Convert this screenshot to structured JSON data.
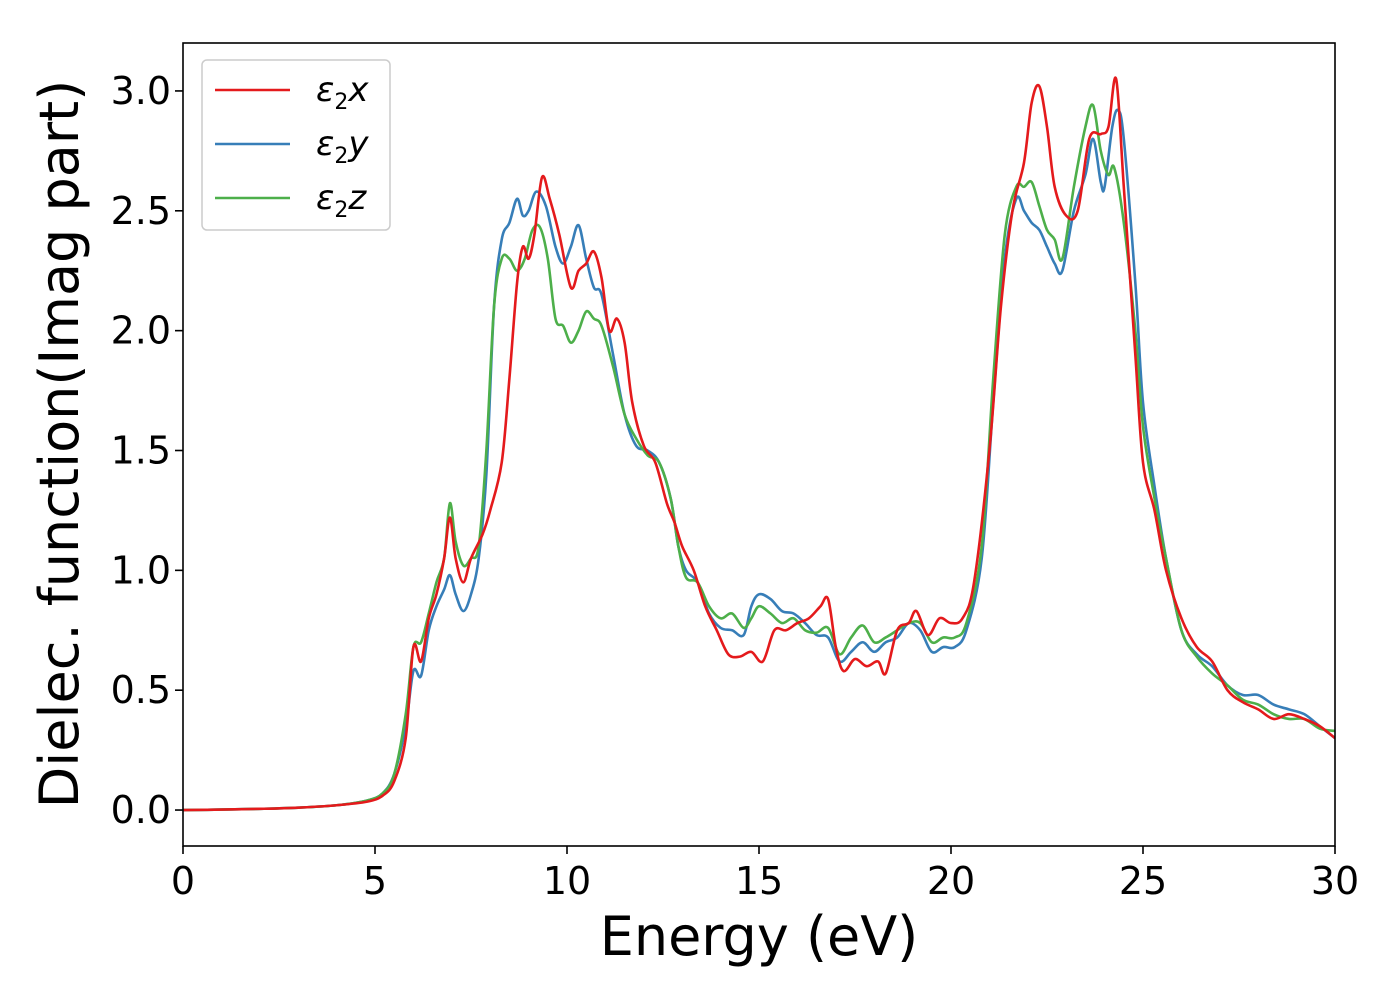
{
  "chart_data": {
    "type": "line",
    "title": "",
    "xlabel": "Energy (eV)",
    "ylabel": "Dielec. function(Imag part)",
    "xlim": [
      0,
      30
    ],
    "ylim": [
      -0.15,
      3.2
    ],
    "xticks": [
      0,
      5,
      10,
      15,
      20,
      25,
      30
    ],
    "yticks": [
      0.0,
      0.5,
      1.0,
      1.5,
      2.0,
      2.5,
      3.0
    ],
    "xtick_labels": [
      "0",
      "5",
      "10",
      "15",
      "20",
      "25",
      "30"
    ],
    "ytick_labels": [
      "0.0",
      "0.5",
      "1.0",
      "1.5",
      "2.0",
      "2.5",
      "3.0"
    ],
    "grid": false,
    "legend_position": "top-left",
    "series": [
      {
        "name": "ε₂x",
        "legend": {
          "main": "ε",
          "sub": "2",
          "suffix": "x"
        },
        "color": "#e41a1c",
        "points": [
          [
            0,
            0
          ],
          [
            1,
            0.002
          ],
          [
            2,
            0.005
          ],
          [
            3,
            0.01
          ],
          [
            4,
            0.02
          ],
          [
            4.8,
            0.035
          ],
          [
            5.2,
            0.06
          ],
          [
            5.5,
            0.12
          ],
          [
            5.8,
            0.3
          ],
          [
            6.0,
            0.68
          ],
          [
            6.2,
            0.62
          ],
          [
            6.4,
            0.8
          ],
          [
            6.6,
            0.9
          ],
          [
            6.8,
            1.05
          ],
          [
            6.95,
            1.22
          ],
          [
            7.1,
            1.05
          ],
          [
            7.3,
            0.95
          ],
          [
            7.5,
            1.05
          ],
          [
            7.8,
            1.15
          ],
          [
            8.0,
            1.25
          ],
          [
            8.3,
            1.45
          ],
          [
            8.5,
            1.8
          ],
          [
            8.7,
            2.2
          ],
          [
            8.85,
            2.35
          ],
          [
            9.0,
            2.3
          ],
          [
            9.15,
            2.4
          ],
          [
            9.35,
            2.64
          ],
          [
            9.55,
            2.55
          ],
          [
            9.8,
            2.4
          ],
          [
            10.1,
            2.18
          ],
          [
            10.3,
            2.25
          ],
          [
            10.5,
            2.28
          ],
          [
            10.7,
            2.33
          ],
          [
            10.9,
            2.22
          ],
          [
            11.1,
            2.0
          ],
          [
            11.3,
            2.05
          ],
          [
            11.5,
            1.95
          ],
          [
            11.7,
            1.7
          ],
          [
            12.0,
            1.52
          ],
          [
            12.3,
            1.45
          ],
          [
            12.6,
            1.28
          ],
          [
            12.8,
            1.2
          ],
          [
            13.0,
            1.1
          ],
          [
            13.3,
            1.0
          ],
          [
            13.6,
            0.85
          ],
          [
            13.9,
            0.75
          ],
          [
            14.2,
            0.65
          ],
          [
            14.5,
            0.64
          ],
          [
            14.8,
            0.66
          ],
          [
            15.1,
            0.62
          ],
          [
            15.4,
            0.75
          ],
          [
            15.7,
            0.75
          ],
          [
            16.0,
            0.78
          ],
          [
            16.3,
            0.8
          ],
          [
            16.6,
            0.85
          ],
          [
            16.8,
            0.88
          ],
          [
            17.0,
            0.68
          ],
          [
            17.2,
            0.58
          ],
          [
            17.5,
            0.63
          ],
          [
            17.8,
            0.6
          ],
          [
            18.1,
            0.62
          ],
          [
            18.3,
            0.57
          ],
          [
            18.6,
            0.75
          ],
          [
            18.9,
            0.78
          ],
          [
            19.1,
            0.83
          ],
          [
            19.4,
            0.73
          ],
          [
            19.7,
            0.8
          ],
          [
            20.0,
            0.78
          ],
          [
            20.3,
            0.8
          ],
          [
            20.6,
            0.95
          ],
          [
            21.0,
            1.5
          ],
          [
            21.3,
            2.1
          ],
          [
            21.6,
            2.5
          ],
          [
            21.9,
            2.7
          ],
          [
            22.1,
            2.95
          ],
          [
            22.3,
            3.02
          ],
          [
            22.5,
            2.85
          ],
          [
            22.7,
            2.6
          ],
          [
            23.0,
            2.48
          ],
          [
            23.3,
            2.5
          ],
          [
            23.6,
            2.8
          ],
          [
            23.9,
            2.82
          ],
          [
            24.1,
            2.85
          ],
          [
            24.3,
            3.05
          ],
          [
            24.5,
            2.6
          ],
          [
            24.8,
            1.9
          ],
          [
            25.0,
            1.45
          ],
          [
            25.3,
            1.25
          ],
          [
            25.6,
            1.0
          ],
          [
            26.0,
            0.8
          ],
          [
            26.4,
            0.68
          ],
          [
            26.8,
            0.62
          ],
          [
            27.2,
            0.5
          ],
          [
            27.6,
            0.45
          ],
          [
            28.0,
            0.42
          ],
          [
            28.4,
            0.38
          ],
          [
            28.8,
            0.4
          ],
          [
            29.2,
            0.38
          ],
          [
            29.6,
            0.35
          ],
          [
            30.0,
            0.3
          ]
        ]
      },
      {
        "name": "ε₂y",
        "legend": {
          "main": "ε",
          "sub": "2",
          "suffix": "y"
        },
        "color": "#377eb8",
        "points": [
          [
            0,
            0
          ],
          [
            1,
            0.002
          ],
          [
            2,
            0.005
          ],
          [
            3,
            0.01
          ],
          [
            4,
            0.02
          ],
          [
            4.8,
            0.04
          ],
          [
            5.2,
            0.07
          ],
          [
            5.5,
            0.15
          ],
          [
            5.8,
            0.35
          ],
          [
            6.0,
            0.58
          ],
          [
            6.2,
            0.56
          ],
          [
            6.4,
            0.75
          ],
          [
            6.6,
            0.85
          ],
          [
            6.8,
            0.92
          ],
          [
            6.95,
            0.98
          ],
          [
            7.1,
            0.9
          ],
          [
            7.3,
            0.83
          ],
          [
            7.5,
            0.9
          ],
          [
            7.7,
            1.05
          ],
          [
            7.9,
            1.4
          ],
          [
            8.1,
            2.1
          ],
          [
            8.3,
            2.38
          ],
          [
            8.5,
            2.45
          ],
          [
            8.7,
            2.55
          ],
          [
            8.85,
            2.48
          ],
          [
            9.0,
            2.5
          ],
          [
            9.2,
            2.58
          ],
          [
            9.45,
            2.52
          ],
          [
            9.7,
            2.35
          ],
          [
            9.9,
            2.28
          ],
          [
            10.1,
            2.35
          ],
          [
            10.3,
            2.44
          ],
          [
            10.5,
            2.3
          ],
          [
            10.7,
            2.18
          ],
          [
            10.9,
            2.15
          ],
          [
            11.2,
            1.9
          ],
          [
            11.5,
            1.65
          ],
          [
            11.8,
            1.52
          ],
          [
            12.1,
            1.5
          ],
          [
            12.4,
            1.45
          ],
          [
            12.7,
            1.3
          ],
          [
            12.9,
            1.1
          ],
          [
            13.1,
            1.0
          ],
          [
            13.4,
            0.95
          ],
          [
            13.7,
            0.82
          ],
          [
            14.0,
            0.76
          ],
          [
            14.3,
            0.75
          ],
          [
            14.6,
            0.73
          ],
          [
            14.8,
            0.85
          ],
          [
            15.0,
            0.9
          ],
          [
            15.3,
            0.88
          ],
          [
            15.6,
            0.83
          ],
          [
            15.9,
            0.82
          ],
          [
            16.2,
            0.78
          ],
          [
            16.5,
            0.73
          ],
          [
            16.8,
            0.72
          ],
          [
            17.1,
            0.62
          ],
          [
            17.4,
            0.66
          ],
          [
            17.7,
            0.7
          ],
          [
            18.0,
            0.66
          ],
          [
            18.3,
            0.7
          ],
          [
            18.6,
            0.72
          ],
          [
            18.9,
            0.78
          ],
          [
            19.2,
            0.75
          ],
          [
            19.5,
            0.66
          ],
          [
            19.8,
            0.68
          ],
          [
            20.1,
            0.68
          ],
          [
            20.4,
            0.75
          ],
          [
            20.8,
            1.05
          ],
          [
            21.1,
            1.7
          ],
          [
            21.4,
            2.3
          ],
          [
            21.7,
            2.55
          ],
          [
            21.9,
            2.5
          ],
          [
            22.1,
            2.45
          ],
          [
            22.3,
            2.42
          ],
          [
            22.5,
            2.35
          ],
          [
            22.7,
            2.28
          ],
          [
            22.9,
            2.25
          ],
          [
            23.2,
            2.5
          ],
          [
            23.5,
            2.65
          ],
          [
            23.7,
            2.8
          ],
          [
            23.9,
            2.62
          ],
          [
            24.0,
            2.6
          ],
          [
            24.2,
            2.85
          ],
          [
            24.35,
            2.92
          ],
          [
            24.5,
            2.8
          ],
          [
            24.8,
            2.2
          ],
          [
            25.0,
            1.7
          ],
          [
            25.3,
            1.35
          ],
          [
            25.6,
            1.05
          ],
          [
            26.0,
            0.75
          ],
          [
            26.4,
            0.65
          ],
          [
            26.8,
            0.6
          ],
          [
            27.2,
            0.52
          ],
          [
            27.6,
            0.48
          ],
          [
            28.0,
            0.48
          ],
          [
            28.4,
            0.44
          ],
          [
            28.8,
            0.42
          ],
          [
            29.2,
            0.4
          ],
          [
            29.6,
            0.35
          ],
          [
            30.0,
            0.3
          ]
        ]
      },
      {
        "name": "ε₂z",
        "legend": {
          "main": "ε",
          "sub": "2",
          "suffix": "z"
        },
        "color": "#4daf4a",
        "points": [
          [
            0,
            0
          ],
          [
            1,
            0.002
          ],
          [
            2,
            0.005
          ],
          [
            3,
            0.01
          ],
          [
            4,
            0.02
          ],
          [
            4.8,
            0.04
          ],
          [
            5.2,
            0.07
          ],
          [
            5.5,
            0.15
          ],
          [
            5.8,
            0.4
          ],
          [
            6.0,
            0.68
          ],
          [
            6.2,
            0.7
          ],
          [
            6.4,
            0.82
          ],
          [
            6.6,
            0.95
          ],
          [
            6.8,
            1.05
          ],
          [
            6.95,
            1.28
          ],
          [
            7.1,
            1.12
          ],
          [
            7.3,
            1.02
          ],
          [
            7.5,
            1.05
          ],
          [
            7.7,
            1.1
          ],
          [
            7.9,
            1.5
          ],
          [
            8.1,
            2.1
          ],
          [
            8.3,
            2.3
          ],
          [
            8.5,
            2.3
          ],
          [
            8.7,
            2.25
          ],
          [
            8.9,
            2.3
          ],
          [
            9.1,
            2.42
          ],
          [
            9.3,
            2.43
          ],
          [
            9.5,
            2.3
          ],
          [
            9.7,
            2.05
          ],
          [
            9.9,
            2.02
          ],
          [
            10.1,
            1.95
          ],
          [
            10.3,
            2.0
          ],
          [
            10.5,
            2.08
          ],
          [
            10.7,
            2.05
          ],
          [
            10.9,
            2.02
          ],
          [
            11.2,
            1.85
          ],
          [
            11.5,
            1.65
          ],
          [
            11.8,
            1.55
          ],
          [
            12.1,
            1.48
          ],
          [
            12.4,
            1.45
          ],
          [
            12.7,
            1.3
          ],
          [
            12.9,
            1.1
          ],
          [
            13.1,
            0.97
          ],
          [
            13.4,
            0.95
          ],
          [
            13.7,
            0.85
          ],
          [
            14.0,
            0.8
          ],
          [
            14.3,
            0.82
          ],
          [
            14.6,
            0.76
          ],
          [
            14.8,
            0.8
          ],
          [
            15.0,
            0.85
          ],
          [
            15.3,
            0.82
          ],
          [
            15.6,
            0.78
          ],
          [
            15.9,
            0.8
          ],
          [
            16.2,
            0.75
          ],
          [
            16.5,
            0.74
          ],
          [
            16.8,
            0.76
          ],
          [
            17.1,
            0.65
          ],
          [
            17.4,
            0.72
          ],
          [
            17.7,
            0.77
          ],
          [
            18.0,
            0.7
          ],
          [
            18.3,
            0.72
          ],
          [
            18.6,
            0.75
          ],
          [
            18.9,
            0.78
          ],
          [
            19.2,
            0.78
          ],
          [
            19.5,
            0.7
          ],
          [
            19.8,
            0.72
          ],
          [
            20.1,
            0.72
          ],
          [
            20.4,
            0.78
          ],
          [
            20.8,
            1.1
          ],
          [
            21.1,
            1.8
          ],
          [
            21.4,
            2.4
          ],
          [
            21.7,
            2.6
          ],
          [
            21.9,
            2.6
          ],
          [
            22.1,
            2.62
          ],
          [
            22.3,
            2.52
          ],
          [
            22.5,
            2.42
          ],
          [
            22.7,
            2.38
          ],
          [
            22.9,
            2.3
          ],
          [
            23.2,
            2.6
          ],
          [
            23.5,
            2.85
          ],
          [
            23.7,
            2.94
          ],
          [
            23.9,
            2.75
          ],
          [
            24.1,
            2.65
          ],
          [
            24.25,
            2.68
          ],
          [
            24.5,
            2.45
          ],
          [
            24.8,
            2.0
          ],
          [
            25.0,
            1.6
          ],
          [
            25.3,
            1.3
          ],
          [
            25.6,
            1.05
          ],
          [
            26.0,
            0.75
          ],
          [
            26.4,
            0.64
          ],
          [
            26.8,
            0.57
          ],
          [
            27.2,
            0.52
          ],
          [
            27.6,
            0.46
          ],
          [
            28.0,
            0.44
          ],
          [
            28.4,
            0.4
          ],
          [
            28.8,
            0.38
          ],
          [
            29.2,
            0.38
          ],
          [
            29.6,
            0.34
          ],
          [
            30.0,
            0.33
          ]
        ]
      }
    ]
  }
}
